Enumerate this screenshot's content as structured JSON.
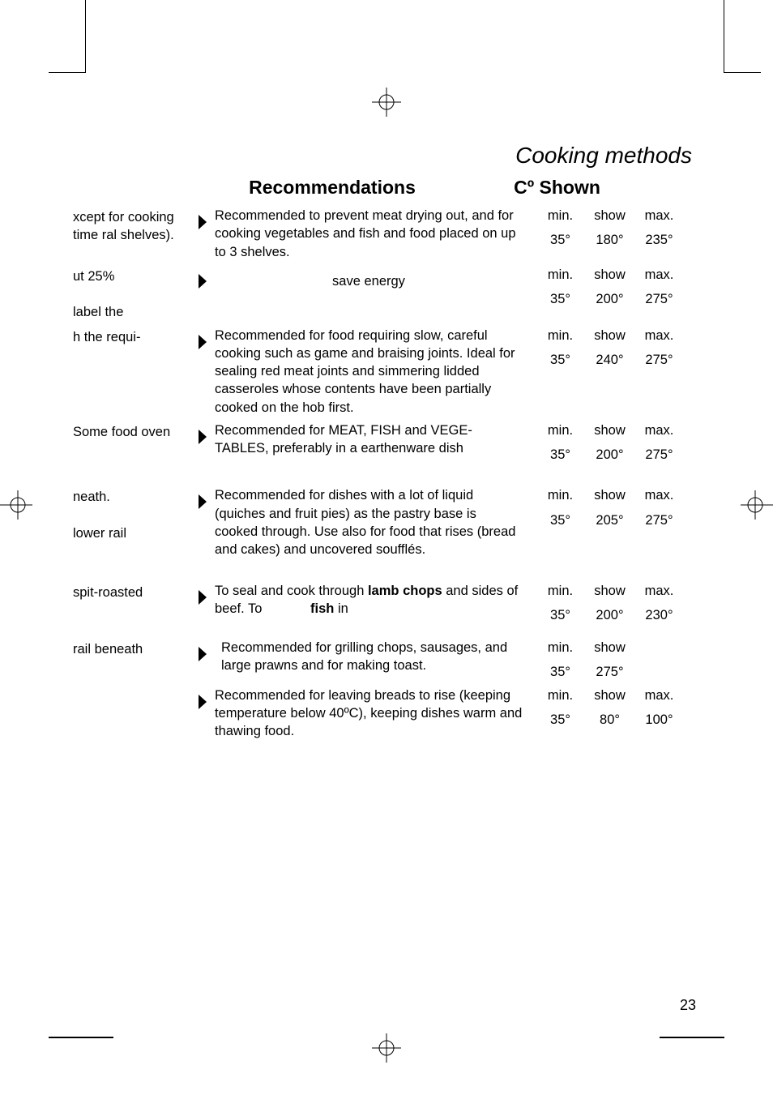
{
  "page_title": "Cooking methods",
  "headers": {
    "recommendations": "Recommendations",
    "c_shown": "Cº  Shown"
  },
  "page_number": "23",
  "rows": [
    {
      "left": "xcept for cooking time ral shelves).",
      "desc": "Recommended to prevent meat drying out, and for cooking vegetables and fish and food placed on up to 3 shelves.",
      "t1": [
        "min.",
        "show",
        "max."
      ],
      "t2": [
        "35°",
        "180°",
        "235°"
      ]
    },
    {
      "left": "ut 25%",
      "left2": " label the",
      "desc": "save energy",
      "desc_center": true,
      "t1": [
        "min.",
        "show",
        "max."
      ],
      "t2": [
        "35°",
        "200°",
        "275°"
      ]
    },
    {
      "left": "h the requi-",
      "desc": "Recommended for food requiring slow, careful cooking such as game and braising joints. Ideal for sealing red meat joints and simmering lidded casseroles whose contents have been partially cooked on the hob first.",
      "t1": [
        "min.",
        "show",
        "max."
      ],
      "t2": [
        "35°",
        "240°",
        "275°"
      ]
    },
    {
      "left": "Some food oven",
      "desc": "Recommended for MEAT, FISH and VEGE-TABLES, preferably in a earthenware dish",
      "t1": [
        "min.",
        "show",
        "max."
      ],
      "t2": [
        "35°",
        "200°",
        "275°"
      ]
    },
    {
      "left": "neath.",
      "left2": " lower rail",
      "desc": "Recommended for dishes with a lot of liquid (quiches and fruit pies) as the pastry base is cooked through. Use also for food that rises (bread and cakes) and uncovered soufflés.",
      "t1": [
        "min.",
        "show",
        "max."
      ],
      "t2": [
        "35°",
        "205°",
        "275°"
      ],
      "extra_top": true
    },
    {
      "left": " spit-roasted",
      "desc_html": "To seal and cook through <b>lamb chops</b> and sides of beef. To&nbsp;&nbsp;&nbsp;&nbsp;&nbsp;&nbsp;&nbsp;&nbsp;&nbsp;&nbsp;&nbsp;&nbsp;&nbsp;<b>fish</b> in",
      "t1": [
        "min.",
        "show",
        "max."
      ],
      "t2": [
        "35°",
        "200°",
        "230°"
      ],
      "extra_top": true
    },
    {
      "left": " rail beneath",
      "desc": "Recommended for grilling chops, sausages, and large prawns and for making toast.",
      "indent": true,
      "t1": [
        "min.",
        "show",
        ""
      ],
      "t2": [
        "35°",
        "275°",
        ""
      ],
      "extra_top2": true
    },
    {
      "left": "",
      "desc": "Recommended for leaving breads to rise (keeping temperature below 40ºC), keeping dishes warm and thawing food.",
      "t1": [
        "min.",
        "show",
        "max."
      ],
      "t2": [
        "35°",
        "80°",
        "100°"
      ]
    }
  ]
}
